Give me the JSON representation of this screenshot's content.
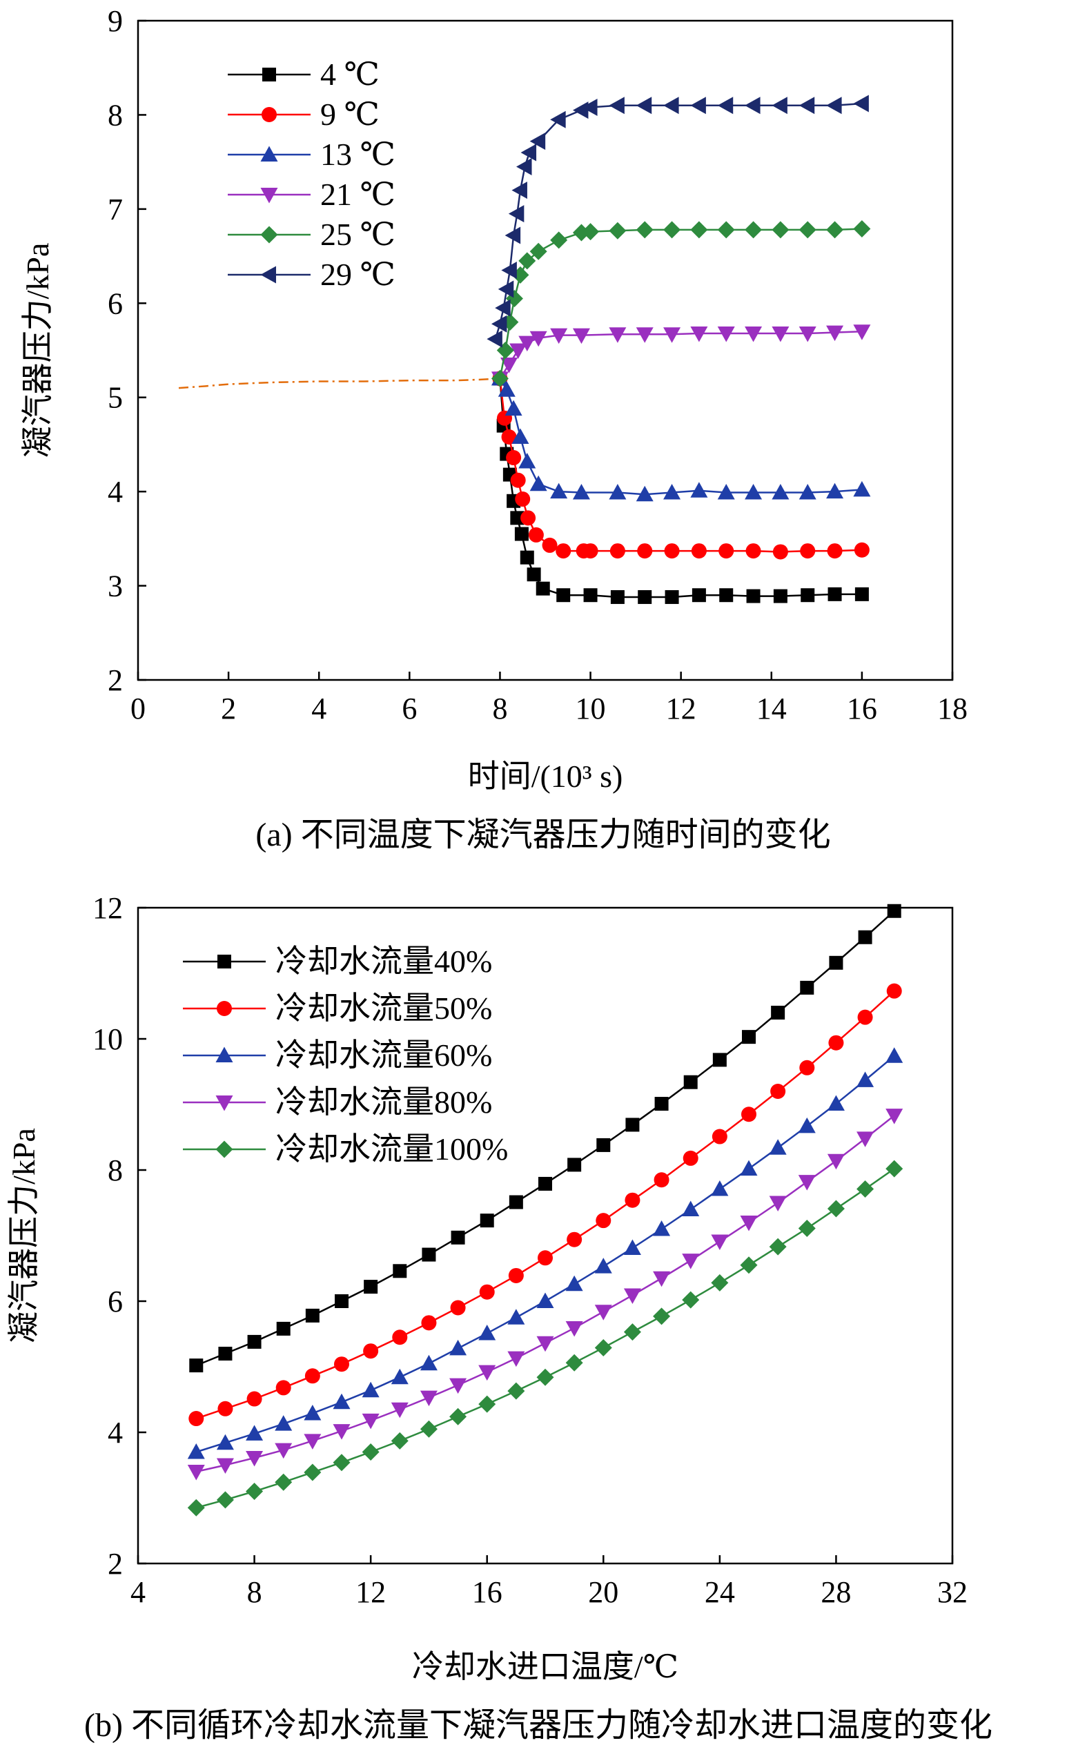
{
  "chart_data": [
    {
      "type": "line",
      "xlabel": "时间/(10³ s)",
      "ylabel": "凝汽器压力/kPa",
      "caption": "(a) 不同温度下凝汽器压力随时间的变化",
      "xlim": [
        0,
        18
      ],
      "ylim": [
        2,
        9
      ],
      "xticks": [
        "0",
        "2",
        "4",
        "6",
        "8",
        "10",
        "12",
        "14",
        "16",
        "18"
      ],
      "yticks": [
        "2",
        "3",
        "4",
        "5",
        "6",
        "7",
        "8",
        "9"
      ],
      "grid": false,
      "legend_position": "top-left",
      "baseline": {
        "x": [
          0.9,
          1.5,
          2.0,
          3.0,
          4.0,
          5.0,
          6.0,
          7.0,
          7.6,
          8.0
        ],
        "y": [
          5.1,
          5.12,
          5.14,
          5.16,
          5.17,
          5.17,
          5.18,
          5.18,
          5.19,
          5.2
        ],
        "color": "#e36c0a"
      },
      "series": [
        {
          "name": "4  ℃",
          "color": "#000000",
          "marker": "square",
          "x": [
            8.0,
            8.08,
            8.15,
            8.22,
            8.3,
            8.38,
            8.48,
            8.6,
            8.75,
            8.95,
            9.4,
            10.0,
            10.6,
            11.2,
            11.8,
            12.4,
            13.0,
            13.6,
            14.2,
            14.8,
            15.4,
            16.0
          ],
          "y": [
            5.2,
            4.7,
            4.4,
            4.18,
            3.9,
            3.72,
            3.55,
            3.3,
            3.12,
            2.97,
            2.9,
            2.9,
            2.88,
            2.88,
            2.88,
            2.9,
            2.9,
            2.89,
            2.89,
            2.9,
            2.91,
            2.91
          ]
        },
        {
          "name": "9 ℃",
          "color": "#ff0000",
          "marker": "circle",
          "x": [
            8.0,
            8.1,
            8.2,
            8.3,
            8.4,
            8.5,
            8.62,
            8.8,
            9.1,
            9.4,
            9.85,
            10.0,
            10.6,
            11.2,
            11.8,
            12.4,
            13.0,
            13.6,
            14.2,
            14.8,
            15.4,
            16.0
          ],
          "y": [
            5.2,
            4.78,
            4.58,
            4.36,
            4.12,
            3.92,
            3.72,
            3.54,
            3.43,
            3.37,
            3.37,
            3.37,
            3.37,
            3.37,
            3.37,
            3.37,
            3.37,
            3.37,
            3.36,
            3.37,
            3.37,
            3.38
          ]
        },
        {
          "name": "13 ℃",
          "color": "#1f3ea8",
          "marker": "triangle-up",
          "x": [
            8.0,
            8.15,
            8.3,
            8.45,
            8.6,
            8.85,
            9.3,
            9.8,
            10.6,
            11.2,
            11.8,
            12.4,
            13.0,
            13.6,
            14.2,
            14.8,
            15.4,
            16.0
          ],
          "y": [
            5.2,
            5.08,
            4.88,
            4.58,
            4.32,
            4.08,
            4.0,
            3.99,
            3.99,
            3.97,
            3.99,
            4.01,
            3.99,
            3.99,
            3.99,
            3.99,
            4.0,
            4.02
          ]
        },
        {
          "name": "21 ℃",
          "color": "#9a2fbf",
          "marker": "triangle-down",
          "x": [
            8.0,
            8.2,
            8.4,
            8.6,
            8.85,
            9.3,
            9.8,
            10.6,
            11.2,
            11.8,
            12.4,
            13.0,
            13.6,
            14.2,
            14.8,
            15.4,
            16.0
          ],
          "y": [
            5.2,
            5.35,
            5.5,
            5.58,
            5.63,
            5.66,
            5.66,
            5.67,
            5.67,
            5.67,
            5.68,
            5.68,
            5.68,
            5.68,
            5.68,
            5.69,
            5.7
          ]
        },
        {
          "name": "25 ℃",
          "color": "#2e8b3e",
          "marker": "diamond",
          "x": [
            8.0,
            8.12,
            8.22,
            8.32,
            8.45,
            8.6,
            8.85,
            9.3,
            9.8,
            10.0,
            10.6,
            11.2,
            11.8,
            12.4,
            13.0,
            13.6,
            14.2,
            14.8,
            15.4,
            16.0
          ],
          "y": [
            5.2,
            5.5,
            5.8,
            6.05,
            6.3,
            6.45,
            6.55,
            6.67,
            6.75,
            6.76,
            6.77,
            6.78,
            6.78,
            6.78,
            6.78,
            6.78,
            6.78,
            6.78,
            6.78,
            6.79
          ]
        },
        {
          "name": "29 ℃",
          "color": "#1c2a6b",
          "marker": "triangle-left",
          "x": [
            7.9,
            8.0,
            8.08,
            8.15,
            8.22,
            8.3,
            8.38,
            8.45,
            8.55,
            8.65,
            8.85,
            9.3,
            9.8,
            10.0,
            10.6,
            11.2,
            11.8,
            12.4,
            13.0,
            13.6,
            14.2,
            14.8,
            15.4,
            16.0
          ],
          "y": [
            5.62,
            5.78,
            5.95,
            6.15,
            6.35,
            6.72,
            6.95,
            7.2,
            7.45,
            7.6,
            7.72,
            7.95,
            8.05,
            8.08,
            8.1,
            8.1,
            8.1,
            8.1,
            8.1,
            8.1,
            8.1,
            8.1,
            8.1,
            8.12
          ]
        }
      ]
    },
    {
      "type": "line",
      "xlabel": "冷却水进口温度/℃",
      "ylabel": "凝汽器压力/kPa",
      "caption": "(b) 不同循环冷却水流量下凝汽器压力随冷却水进口温度的变化",
      "xlim": [
        4,
        32
      ],
      "ylim": [
        2,
        12
      ],
      "xticks": [
        "4",
        "8",
        "12",
        "16",
        "20",
        "24",
        "28",
        "32"
      ],
      "yticks": [
        "2",
        "4",
        "6",
        "8",
        "10",
        "12"
      ],
      "grid": false,
      "legend_position": "top-left",
      "x": [
        6,
        7,
        8,
        9,
        10,
        11,
        12,
        13,
        14,
        15,
        16,
        17,
        18,
        19,
        20,
        21,
        22,
        23,
        24,
        25,
        26,
        27,
        28,
        29,
        30
      ],
      "series": [
        {
          "name": "冷却水流量40%",
          "color": "#000000",
          "marker": "square",
          "values": [
            5.02,
            5.2,
            5.38,
            5.58,
            5.78,
            6.0,
            6.22,
            6.46,
            6.71,
            6.97,
            7.23,
            7.51,
            7.79,
            8.08,
            8.38,
            8.69,
            9.01,
            9.34,
            9.68,
            10.03,
            10.4,
            10.78,
            11.16,
            11.55,
            11.95
          ]
        },
        {
          "name": "冷却水流量50%",
          "color": "#ff0000",
          "marker": "circle",
          "values": [
            4.21,
            4.36,
            4.51,
            4.68,
            4.86,
            5.04,
            5.24,
            5.45,
            5.67,
            5.9,
            6.14,
            6.39,
            6.66,
            6.94,
            7.23,
            7.54,
            7.85,
            8.18,
            8.51,
            8.85,
            9.2,
            9.56,
            9.94,
            10.33,
            10.73
          ]
        },
        {
          "name": "冷却水流量60%",
          "color": "#1f3ea8",
          "marker": "triangle-up",
          "values": [
            3.7,
            3.84,
            3.98,
            4.13,
            4.29,
            4.46,
            4.64,
            4.84,
            5.05,
            5.28,
            5.51,
            5.75,
            6.0,
            6.26,
            6.53,
            6.81,
            7.1,
            7.4,
            7.71,
            8.02,
            8.34,
            8.67,
            9.01,
            9.37,
            9.74
          ]
        },
        {
          "name": "冷却水流量80%",
          "color": "#9a2fbf",
          "marker": "triangle-down",
          "values": [
            3.4,
            3.5,
            3.61,
            3.73,
            3.87,
            4.02,
            4.18,
            4.35,
            4.53,
            4.72,
            4.92,
            5.13,
            5.36,
            5.59,
            5.84,
            6.09,
            6.35,
            6.62,
            6.91,
            7.2,
            7.5,
            7.82,
            8.14,
            8.48,
            8.83
          ]
        },
        {
          "name": "冷却水流量100%",
          "color": "#2e8b3e",
          "marker": "diamond",
          "values": [
            2.85,
            2.97,
            3.1,
            3.24,
            3.39,
            3.54,
            3.7,
            3.87,
            4.05,
            4.24,
            4.43,
            4.63,
            4.84,
            5.06,
            5.29,
            5.53,
            5.77,
            6.02,
            6.28,
            6.55,
            6.83,
            7.11,
            7.41,
            7.71,
            8.02
          ]
        }
      ]
    }
  ]
}
